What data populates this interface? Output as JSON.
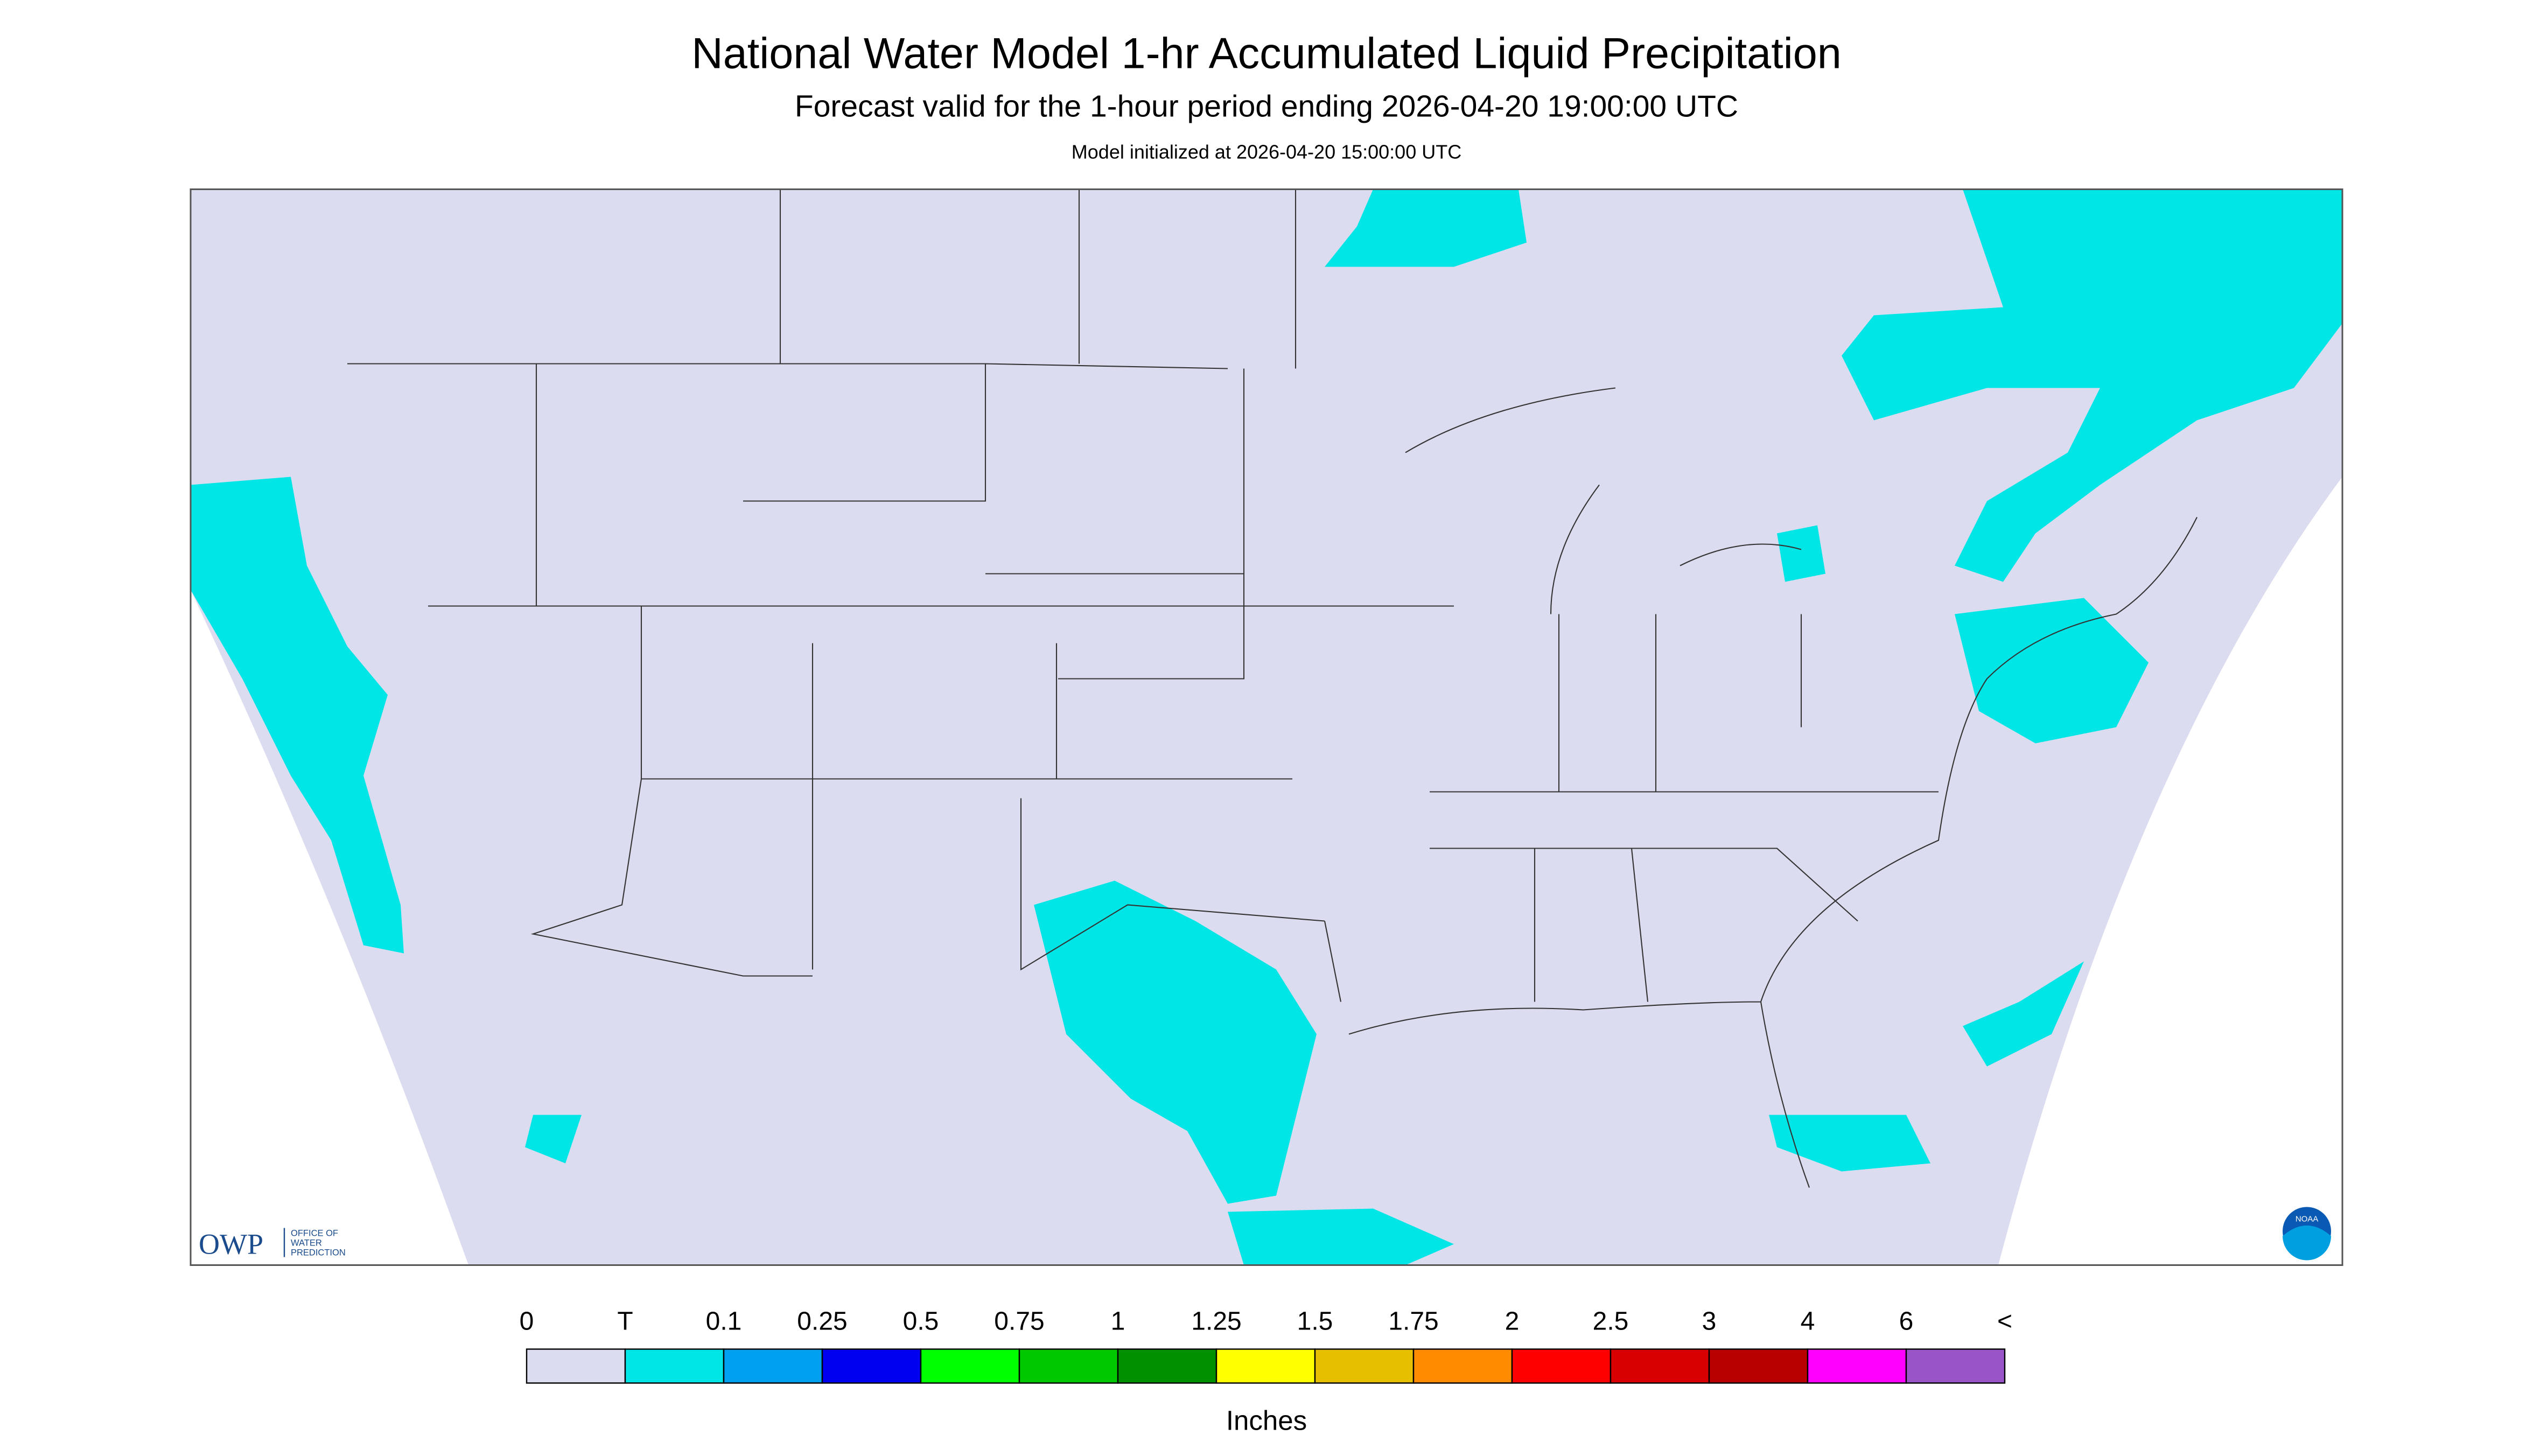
{
  "header": {
    "title": "National Water Model 1-hr Accumulated Liquid Precipitation",
    "subtitle": "Forecast valid for the 1-hour period ending 2026-04-20 19:00:00 UTC",
    "init": "Model initialized at 2026-04-20 15:00:00 UTC"
  },
  "logos": {
    "owp": "OWP",
    "owp_name": [
      "OFFICE OF",
      "WATER",
      "PREDICTION"
    ],
    "noaa": "NOAA"
  },
  "legend": {
    "labels": [
      "0",
      "T",
      "0.1",
      "0.25",
      "0.5",
      "0.75",
      "1",
      "1.25",
      "1.5",
      "1.75",
      "2",
      "2.5",
      "3",
      "4",
      "6",
      "<"
    ],
    "colors": [
      "#dcdcf0",
      "#00e5e5",
      "#00a0f0",
      "#0000f0",
      "#00ff00",
      "#00c800",
      "#009000",
      "#ffff00",
      "#e6c000",
      "#ff8c00",
      "#ff0000",
      "#d80000",
      "#b80000",
      "#ff00ff",
      "#9955c8"
    ],
    "unit": "Inches"
  }
}
